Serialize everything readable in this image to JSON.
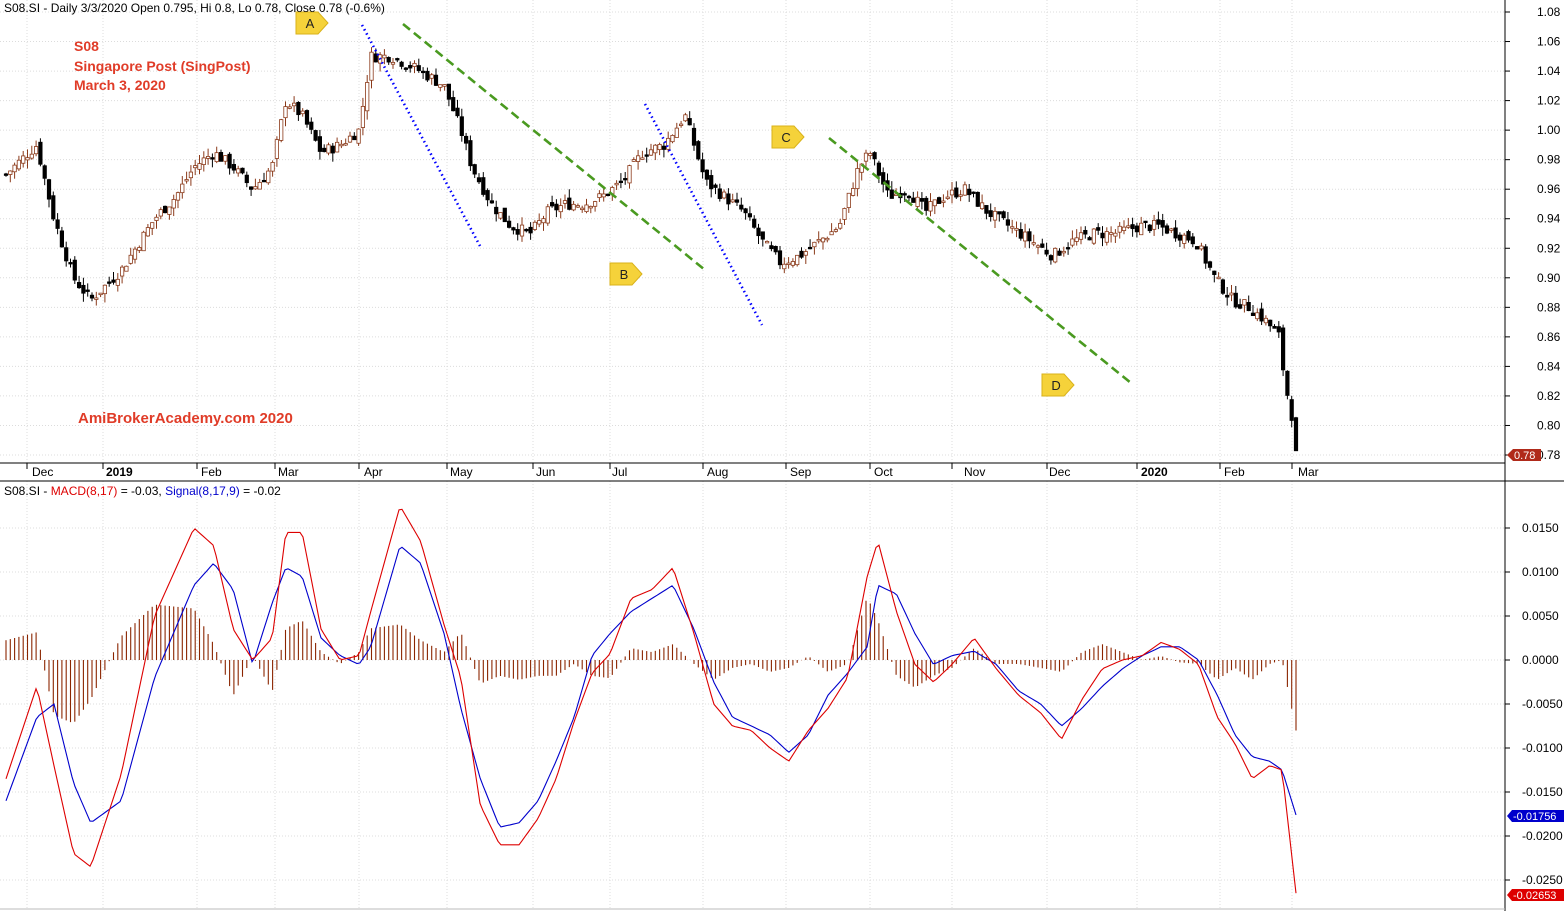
{
  "header": {
    "price_info": "S08.SI - Daily 3/3/2020 Open 0.795, Hi 0.8, Lo 0.78, Close 0.78 (-0.6%)"
  },
  "annotation_title": {
    "ticker": "S08",
    "company": "Singapore Post  (SingPost)",
    "date": "March 3, 2020"
  },
  "watermark": "AmiBrokerAcademy.com  2020",
  "macd_header": {
    "prefix": "S08.SI - ",
    "macd_label": "MACD(8,17)",
    "macd_value": " = -0.03, ",
    "signal_label": "Signal(8,17,9)",
    "signal_value": " = -0.02"
  },
  "markers": [
    "A",
    "B",
    "C",
    "D"
  ],
  "colors": {
    "macd": "#dd0000",
    "signal": "#0000cc",
    "histogram": "#8b2500",
    "bull_candle": "#8b3a1a",
    "bear_candle": "#000000",
    "trend_dotted": "#0000ff",
    "trend_dashed": "#4a9a20",
    "marker_fill": "#f5d23a",
    "title_text": "#e03c28",
    "last_price_box": "#b02a1a"
  },
  "chart_data": [
    {
      "type": "candlestick",
      "title": "S08.SI - Daily",
      "x_tick_labels": [
        "Dec",
        "2019",
        "Feb",
        "Mar",
        "Apr",
        "May",
        "Jun",
        "Jul",
        "Aug",
        "Sep",
        "Oct",
        "Nov",
        "Dec",
        "2020",
        "Feb",
        "Mar"
      ],
      "y_tick_labels": [
        "1.08",
        "1.06",
        "1.04",
        "1.02",
        "1.00",
        "0.98",
        "0.96",
        "0.94",
        "0.92",
        "0.90",
        "0.88",
        "0.86",
        "0.84",
        "0.82",
        "0.80",
        "0.78"
      ],
      "ylim": [
        0.78,
        1.08
      ],
      "last_close_label": "0.78",
      "grid": true,
      "close_path": [
        [
          "2018-11-26",
          0.97
        ],
        [
          "2018-12-05",
          0.99
        ],
        [
          "2018-12-12",
          0.94
        ],
        [
          "2018-12-20",
          0.9
        ],
        [
          "2018-12-27",
          0.885
        ],
        [
          "2019-01-07",
          0.905
        ],
        [
          "2019-01-18",
          0.94
        ],
        [
          "2019-01-25",
          0.955
        ],
        [
          "2019-01-31",
          0.975
        ],
        [
          "2019-02-07",
          0.985
        ],
        [
          "2019-02-14",
          0.975
        ],
        [
          "2019-02-21",
          0.96
        ],
        [
          "2019-02-28",
          0.975
        ],
        [
          "2019-03-05",
          1.02
        ],
        [
          "2019-03-11",
          1.01
        ],
        [
          "2019-03-18",
          0.985
        ],
        [
          "2019-03-25",
          0.99
        ],
        [
          "2019-04-01",
          1.0
        ],
        [
          "2019-04-05",
          1.05
        ],
        [
          "2019-04-12",
          1.05
        ],
        [
          "2019-04-22",
          1.04
        ],
        [
          "2019-04-30",
          1.03
        ],
        [
          "2019-05-06",
          1.0
        ],
        [
          "2019-05-10",
          0.975
        ],
        [
          "2019-05-17",
          0.95
        ],
        [
          "2019-05-24",
          0.935
        ],
        [
          "2019-05-31",
          0.93
        ],
        [
          "2019-06-07",
          0.945
        ],
        [
          "2019-06-14",
          0.95
        ],
        [
          "2019-06-21",
          0.95
        ],
        [
          "2019-06-28",
          0.955
        ],
        [
          "2019-07-05",
          0.965
        ],
        [
          "2019-07-12",
          0.985
        ],
        [
          "2019-07-19",
          0.99
        ],
        [
          "2019-07-26",
          1.01
        ],
        [
          "2019-08-02",
          0.965
        ],
        [
          "2019-08-09",
          0.955
        ],
        [
          "2019-08-16",
          0.945
        ],
        [
          "2019-08-23",
          0.925
        ],
        [
          "2019-08-30",
          0.91
        ],
        [
          "2019-09-06",
          0.915
        ],
        [
          "2019-09-13",
          0.925
        ],
        [
          "2019-09-20",
          0.935
        ],
        [
          "2019-09-27",
          0.975
        ],
        [
          "2019-10-01",
          0.985
        ],
        [
          "2019-10-08",
          0.955
        ],
        [
          "2019-10-15",
          0.96
        ],
        [
          "2019-10-22",
          0.945
        ],
        [
          "2019-10-29",
          0.955
        ],
        [
          "2019-11-05",
          0.96
        ],
        [
          "2019-11-12",
          0.945
        ],
        [
          "2019-11-19",
          0.935
        ],
        [
          "2019-11-26",
          0.925
        ],
        [
          "2019-12-03",
          0.915
        ],
        [
          "2019-12-10",
          0.925
        ],
        [
          "2019-12-17",
          0.93
        ],
        [
          "2019-12-24",
          0.93
        ],
        [
          "2020-01-02",
          0.935
        ],
        [
          "2020-01-09",
          0.935
        ],
        [
          "2020-01-16",
          0.93
        ],
        [
          "2020-01-23",
          0.925
        ],
        [
          "2020-01-30",
          0.9
        ],
        [
          "2020-02-06",
          0.885
        ],
        [
          "2020-02-13",
          0.88
        ],
        [
          "2020-02-20",
          0.87
        ],
        [
          "2020-02-25",
          0.86
        ],
        [
          "2020-02-27",
          0.83
        ],
        [
          "2020-03-02",
          0.8
        ],
        [
          "2020-03-03",
          0.78
        ]
      ]
    },
    {
      "type": "line",
      "title": "MACD(8,17), Signal(8,17,9)",
      "y_tick_labels": [
        "0.0150",
        "0.0100",
        "0.0050",
        "0.0000",
        "-0.0050",
        "-0.0100",
        "-0.0150",
        "-0.0200",
        "-0.0250"
      ],
      "ylim": [
        -0.0265,
        0.019
      ],
      "grid": true,
      "last_value_labels": {
        "signal": "-0.01756",
        "macd": "-0.02653"
      },
      "series": [
        {
          "name": "MACD(8,17)",
          "points": [
            [
              "2018-11-26",
              -0.0135
            ],
            [
              "2018-12-05",
              -0.003
            ],
            [
              "2018-12-12",
              -0.012
            ],
            [
              "2018-12-20",
              -0.022
            ],
            [
              "2018-12-27",
              -0.0235
            ],
            [
              "2019-01-07",
              -0.013
            ],
            [
              "2019-01-18",
              0.005
            ],
            [
              "2019-01-31",
              0.015
            ],
            [
              "2019-02-07",
              0.013
            ],
            [
              "2019-02-14",
              0.0035
            ],
            [
              "2019-02-21",
              0.0
            ],
            [
              "2019-02-28",
              0.0025
            ],
            [
              "2019-03-05",
              0.0145
            ],
            [
              "2019-03-11",
              0.0145
            ],
            [
              "2019-03-18",
              0.0035
            ],
            [
              "2019-03-25",
              0.0
            ],
            [
              "2019-04-01",
              0.0005
            ],
            [
              "2019-04-05",
              0.0055
            ],
            [
              "2019-04-15",
              0.0175
            ],
            [
              "2019-04-22",
              0.0135
            ],
            [
              "2019-04-30",
              0.004
            ],
            [
              "2019-05-06",
              -0.002
            ],
            [
              "2019-05-13",
              -0.0165
            ],
            [
              "2019-05-20",
              -0.021
            ],
            [
              "2019-05-27",
              -0.021
            ],
            [
              "2019-06-03",
              -0.018
            ],
            [
              "2019-06-10",
              -0.0135
            ],
            [
              "2019-06-17",
              -0.007
            ],
            [
              "2019-06-24",
              -0.0015
            ],
            [
              "2019-07-01",
              0.0007
            ],
            [
              "2019-07-08",
              0.007
            ],
            [
              "2019-07-15",
              0.008
            ],
            [
              "2019-07-22",
              0.0105
            ],
            [
              "2019-07-29",
              0.003
            ],
            [
              "2019-08-05",
              -0.005
            ],
            [
              "2019-08-12",
              -0.0075
            ],
            [
              "2019-08-19",
              -0.008
            ],
            [
              "2019-08-26",
              -0.01
            ],
            [
              "2019-09-02",
              -0.0115
            ],
            [
              "2019-09-09",
              -0.008
            ],
            [
              "2019-09-16",
              -0.0055
            ],
            [
              "2019-09-23",
              -0.002
            ],
            [
              "2019-09-30",
              0.0095
            ],
            [
              "2019-10-04",
              0.0135
            ],
            [
              "2019-10-11",
              0.0055
            ],
            [
              "2019-10-18",
              -0.0005
            ],
            [
              "2019-10-25",
              -0.0025
            ],
            [
              "2019-11-01",
              -0.0005
            ],
            [
              "2019-11-08",
              0.0025
            ],
            [
              "2019-11-15",
              -0.001
            ],
            [
              "2019-11-22",
              -0.004
            ],
            [
              "2019-11-29",
              -0.006
            ],
            [
              "2019-12-06",
              -0.009
            ],
            [
              "2019-12-13",
              -0.0045
            ],
            [
              "2019-12-20",
              -0.001
            ],
            [
              "2019-12-27",
              0.0
            ],
            [
              "2020-01-03",
              0.0005
            ],
            [
              "2020-01-10",
              0.002
            ],
            [
              "2020-01-17",
              0.0012
            ],
            [
              "2020-01-24",
              -0.0005
            ],
            [
              "2020-01-31",
              -0.0065
            ],
            [
              "2020-02-07",
              -0.0095
            ],
            [
              "2020-02-14",
              -0.0135
            ],
            [
              "2020-02-21",
              -0.012
            ],
            [
              "2020-02-26",
              -0.0125
            ],
            [
              "2020-03-03",
              -0.0265
            ]
          ]
        },
        {
          "name": "Signal(8,17,9)",
          "points": [
            [
              "2018-11-26",
              -0.016
            ],
            [
              "2018-12-05",
              -0.0065
            ],
            [
              "2018-12-12",
              -0.005
            ],
            [
              "2018-12-20",
              -0.014
            ],
            [
              "2018-12-27",
              -0.0185
            ],
            [
              "2019-01-07",
              -0.016
            ],
            [
              "2019-01-18",
              -0.002
            ],
            [
              "2019-01-31",
              0.0085
            ],
            [
              "2019-02-07",
              0.011
            ],
            [
              "2019-02-14",
              0.008
            ],
            [
              "2019-02-21",
              -0.0005
            ],
            [
              "2019-02-28",
              0.0065
            ],
            [
              "2019-03-05",
              0.0105
            ],
            [
              "2019-03-11",
              0.0095
            ],
            [
              "2019-03-18",
              0.0025
            ],
            [
              "2019-03-25",
              0.0005
            ],
            [
              "2019-04-01",
              -0.0005
            ],
            [
              "2019-04-05",
              0.0015
            ],
            [
              "2019-04-15",
              0.013
            ],
            [
              "2019-04-22",
              0.011
            ],
            [
              "2019-04-30",
              0.003
            ],
            [
              "2019-05-06",
              -0.0055
            ],
            [
              "2019-05-13",
              -0.0135
            ],
            [
              "2019-05-20",
              -0.019
            ],
            [
              "2019-05-27",
              -0.0185
            ],
            [
              "2019-06-03",
              -0.016
            ],
            [
              "2019-06-10",
              -0.0115
            ],
            [
              "2019-06-17",
              -0.0065
            ],
            [
              "2019-06-24",
              0.0005
            ],
            [
              "2019-07-01",
              0.003
            ],
            [
              "2019-07-08",
              0.0055
            ],
            [
              "2019-07-15",
              0.007
            ],
            [
              "2019-07-22",
              0.0085
            ],
            [
              "2019-07-29",
              0.0035
            ],
            [
              "2019-08-05",
              -0.0025
            ],
            [
              "2019-08-12",
              -0.0065
            ],
            [
              "2019-08-19",
              -0.0075
            ],
            [
              "2019-08-26",
              -0.0085
            ],
            [
              "2019-09-02",
              -0.0105
            ],
            [
              "2019-09-09",
              -0.0085
            ],
            [
              "2019-09-16",
              -0.004
            ],
            [
              "2019-09-23",
              -0.0015
            ],
            [
              "2019-09-30",
              0.0015
            ],
            [
              "2019-10-04",
              0.0085
            ],
            [
              "2019-10-11",
              0.0075
            ],
            [
              "2019-10-18",
              0.003
            ],
            [
              "2019-10-25",
              -0.0005
            ],
            [
              "2019-11-01",
              0.0005
            ],
            [
              "2019-11-08",
              0.001
            ],
            [
              "2019-11-15",
              -0.0005
            ],
            [
              "2019-11-22",
              -0.0035
            ],
            [
              "2019-11-29",
              -0.005
            ],
            [
              "2019-12-06",
              -0.0075
            ],
            [
              "2019-12-13",
              -0.0055
            ],
            [
              "2019-12-20",
              -0.003
            ],
            [
              "2019-12-27",
              -0.001
            ],
            [
              "2020-01-03",
              0.0005
            ],
            [
              "2020-01-10",
              0.0015
            ],
            [
              "2020-01-17",
              0.0015
            ],
            [
              "2020-01-24",
              0.0
            ],
            [
              "2020-01-31",
              -0.004
            ],
            [
              "2020-02-07",
              -0.0085
            ],
            [
              "2020-02-14",
              -0.011
            ],
            [
              "2020-02-21",
              -0.0115
            ],
            [
              "2020-02-26",
              -0.0125
            ],
            [
              "2020-03-03",
              -0.0176
            ]
          ]
        }
      ]
    }
  ]
}
